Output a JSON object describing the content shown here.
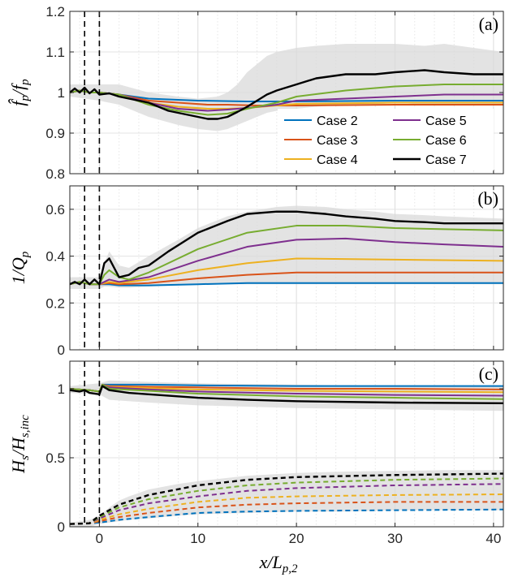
{
  "chart_data": [
    {
      "panel_label": "(a)",
      "type": "line",
      "ylabel": "f̂p/fp",
      "xlim": [
        -3,
        41
      ],
      "ylim": [
        0.8,
        1.2
      ],
      "yticks": [
        "0.8",
        "0.9",
        "1",
        "1.1",
        "1.2"
      ],
      "xticks": [],
      "vlines": [
        -1.5,
        0
      ],
      "band": {
        "x": [
          -3,
          0,
          2,
          5,
          8,
          10,
          12,
          13,
          14,
          15,
          16,
          17,
          18,
          20,
          22,
          25,
          28,
          30,
          33,
          35,
          38,
          41
        ],
        "upper": [
          1.02,
          1.02,
          1.02,
          1.0,
          0.99,
          0.985,
          0.99,
          1.0,
          1.02,
          1.05,
          1.07,
          1.09,
          1.1,
          1.11,
          1.115,
          1.12,
          1.12,
          1.12,
          1.115,
          1.12,
          1.11,
          1.1
        ],
        "lower": [
          0.99,
          0.98,
          0.97,
          0.94,
          0.92,
          0.91,
          0.905,
          0.91,
          0.92,
          0.93,
          0.94,
          0.95,
          0.955,
          0.96,
          0.965,
          0.97,
          0.97,
          0.975,
          0.97,
          0.97,
          0.97,
          0.97
        ]
      },
      "series": [
        {
          "name": "Case 2",
          "color": "#0072BD",
          "style": "solid",
          "x": [
            -3,
            -2,
            -1,
            0,
            2,
            5,
            10,
            15,
            20,
            30,
            41
          ],
          "y": [
            1.0,
            1.005,
            1.0,
            1.0,
            0.995,
            0.985,
            0.98,
            0.978,
            0.978,
            0.98,
            0.98
          ]
        },
        {
          "name": "Case 3",
          "color": "#D95319",
          "style": "solid",
          "x": [
            -3,
            -2,
            -1,
            0,
            2,
            5,
            8,
            11,
            13,
            16,
            20,
            30,
            41
          ],
          "y": [
            1.0,
            1.005,
            1.0,
            1.0,
            0.995,
            0.98,
            0.975,
            0.97,
            0.97,
            0.968,
            0.968,
            0.97,
            0.97
          ]
        },
        {
          "name": "Case 4",
          "color": "#EDB120",
          "style": "solid",
          "x": [
            -3,
            -2,
            -1,
            0,
            2,
            5,
            8,
            11,
            13,
            15,
            18,
            20,
            30,
            41
          ],
          "y": [
            1.0,
            1.005,
            1.0,
            1.0,
            0.995,
            0.975,
            0.965,
            0.96,
            0.96,
            0.962,
            0.968,
            0.972,
            0.975,
            0.975
          ]
        },
        {
          "name": "Case 5",
          "color": "#7E2F8E",
          "style": "solid",
          "x": [
            -3,
            -2,
            -1,
            0,
            2,
            5,
            8,
            11,
            13,
            15,
            18,
            20,
            25,
            30,
            35,
            41
          ],
          "y": [
            1.0,
            1.005,
            1.0,
            1.0,
            0.995,
            0.975,
            0.96,
            0.955,
            0.958,
            0.962,
            0.97,
            0.98,
            0.985,
            0.99,
            0.995,
            0.995
          ]
        },
        {
          "name": "Case 6",
          "color": "#77AC30",
          "style": "solid",
          "x": [
            -3,
            -2,
            -1,
            0,
            2,
            5,
            8,
            11,
            13,
            15,
            18,
            20,
            25,
            30,
            35,
            41
          ],
          "y": [
            1.0,
            1.005,
            1.0,
            1.0,
            0.995,
            0.97,
            0.955,
            0.945,
            0.948,
            0.96,
            0.975,
            0.99,
            1.005,
            1.015,
            1.02,
            1.02
          ]
        },
        {
          "name": "Case 7",
          "color": "#000000",
          "style": "solid",
          "x": [
            -3,
            -2.5,
            -2,
            -1.5,
            -1,
            -0.5,
            0,
            1,
            2,
            3,
            5,
            7,
            9,
            11,
            12,
            13,
            14,
            15,
            16,
            17,
            18,
            20,
            22,
            25,
            28,
            30,
            33,
            35,
            38,
            41
          ],
          "y": [
            1.0,
            1.01,
            1.0,
            1.012,
            0.998,
            1.008,
            0.995,
            0.998,
            0.99,
            0.985,
            0.975,
            0.955,
            0.945,
            0.935,
            0.935,
            0.94,
            0.952,
            0.965,
            0.98,
            0.995,
            1.005,
            1.02,
            1.035,
            1.045,
            1.045,
            1.05,
            1.055,
            1.05,
            1.045,
            1.045
          ]
        }
      ],
      "legend": {
        "placement": "bottom-right",
        "columns": 2
      }
    },
    {
      "panel_label": "(b)",
      "type": "line",
      "ylabel": "1/Qp",
      "xlim": [
        -3,
        41
      ],
      "ylim": [
        0,
        0.7
      ],
      "yticks": [
        "0",
        "0.2",
        "0.4",
        "0.6"
      ],
      "xticks": [],
      "vlines": [
        -1.5,
        0
      ],
      "band": {
        "x": [
          -3,
          0,
          0.5,
          1,
          2,
          3,
          5,
          8,
          10,
          13,
          15,
          18,
          20,
          23,
          25,
          28,
          30,
          33,
          35,
          38,
          41
        ],
        "upper": [
          0.31,
          0.31,
          0.37,
          0.42,
          0.36,
          0.35,
          0.4,
          0.47,
          0.52,
          0.57,
          0.59,
          0.61,
          0.615,
          0.61,
          0.6,
          0.59,
          0.58,
          0.575,
          0.57,
          0.565,
          0.56
        ],
        "lower": [
          0.26,
          0.26,
          0.27,
          0.27,
          0.265,
          0.265,
          0.27,
          0.275,
          0.28,
          0.28,
          0.28,
          0.28,
          0.28,
          0.28,
          0.28,
          0.28,
          0.28,
          0.28,
          0.28,
          0.28,
          0.28
        ]
      },
      "series": [
        {
          "name": "Case 2",
          "color": "#0072BD",
          "style": "solid",
          "x": [
            -3,
            -2,
            -1,
            0,
            1,
            2,
            5,
            10,
            15,
            20,
            30,
            41
          ],
          "y": [
            0.28,
            0.29,
            0.28,
            0.28,
            0.28,
            0.275,
            0.275,
            0.28,
            0.285,
            0.285,
            0.285,
            0.285
          ]
        },
        {
          "name": "Case 3",
          "color": "#D95319",
          "style": "solid",
          "x": [
            -3,
            -2,
            -1,
            0,
            1,
            2,
            5,
            10,
            15,
            20,
            30,
            41
          ],
          "y": [
            0.28,
            0.29,
            0.28,
            0.28,
            0.285,
            0.28,
            0.285,
            0.305,
            0.32,
            0.33,
            0.33,
            0.33
          ]
        },
        {
          "name": "Case 4",
          "color": "#EDB120",
          "style": "solid",
          "x": [
            -3,
            -2,
            -1,
            0,
            1,
            2,
            5,
            10,
            15,
            20,
            30,
            41
          ],
          "y": [
            0.28,
            0.29,
            0.28,
            0.28,
            0.29,
            0.285,
            0.3,
            0.34,
            0.37,
            0.39,
            0.385,
            0.38
          ]
        },
        {
          "name": "Case 5",
          "color": "#7E2F8E",
          "style": "solid",
          "x": [
            -3,
            -2,
            -1,
            0,
            1,
            2,
            5,
            10,
            15,
            20,
            25,
            30,
            35,
            41
          ],
          "y": [
            0.28,
            0.29,
            0.28,
            0.28,
            0.3,
            0.29,
            0.31,
            0.38,
            0.44,
            0.47,
            0.475,
            0.46,
            0.45,
            0.44
          ]
        },
        {
          "name": "Case 6",
          "color": "#77AC30",
          "style": "solid",
          "x": [
            -3,
            -2,
            -1,
            0,
            0.5,
            1,
            2,
            3,
            5,
            10,
            15,
            20,
            25,
            30,
            35,
            41
          ],
          "y": [
            0.28,
            0.29,
            0.28,
            0.28,
            0.32,
            0.34,
            0.31,
            0.3,
            0.33,
            0.43,
            0.5,
            0.53,
            0.53,
            0.52,
            0.515,
            0.51
          ]
        },
        {
          "name": "Case 7",
          "color": "#000000",
          "style": "solid",
          "x": [
            -3,
            -2.5,
            -2,
            -1.5,
            -1,
            -0.5,
            0,
            0.5,
            1,
            1.5,
            2,
            3,
            4,
            5,
            7,
            10,
            13,
            15,
            18,
            20,
            23,
            25,
            28,
            30,
            33,
            35,
            38,
            41
          ],
          "y": [
            0.28,
            0.29,
            0.28,
            0.3,
            0.28,
            0.3,
            0.28,
            0.37,
            0.39,
            0.35,
            0.31,
            0.32,
            0.35,
            0.36,
            0.42,
            0.5,
            0.55,
            0.58,
            0.59,
            0.59,
            0.58,
            0.57,
            0.56,
            0.55,
            0.545,
            0.54,
            0.54,
            0.54
          ]
        }
      ]
    },
    {
      "panel_label": "(c)",
      "type": "line",
      "ylabel": "Hs/Hs,inc",
      "xlabel": "x/Lp,2",
      "xlim": [
        -3,
        41
      ],
      "ylim": [
        0,
        1.2
      ],
      "yticks": [
        "0",
        "0.5",
        "1"
      ],
      "xticks": [
        "0",
        "10",
        "20",
        "30",
        "40"
      ],
      "vlines": [
        -1.5,
        0
      ],
      "band": {
        "x": [
          -3,
          -1,
          0,
          1,
          2,
          3,
          5,
          8,
          10,
          15,
          20,
          25,
          30,
          35,
          41
        ],
        "upper": [
          0.03,
          0.05,
          0.08,
          0.14,
          0.19,
          0.22,
          0.27,
          0.31,
          0.33,
          0.37,
          0.39,
          0.4,
          0.405,
          0.41,
          0.41
        ],
        "lower": [
          0.0,
          0.0,
          0.02,
          0.03,
          0.04,
          0.05,
          0.06,
          0.08,
          0.09,
          0.1,
          0.11,
          0.11,
          0.12,
          0.12,
          0.12
        ]
      },
      "band2": {
        "x": [
          -3,
          0,
          1,
          5,
          10,
          20,
          30,
          41
        ],
        "upper": [
          1.02,
          1.04,
          1.06,
          1.05,
          1.04,
          1.03,
          1.02,
          1.02
        ],
        "lower": [
          0.97,
          0.96,
          0.92,
          0.9,
          0.88,
          0.86,
          0.85,
          0.84
        ]
      },
      "series": [
        {
          "name": "Case 2",
          "color": "#0072BD",
          "style": "solid",
          "x": [
            -3,
            -1,
            0,
            0.3,
            1,
            5,
            10,
            20,
            30,
            41
          ],
          "y": [
            1.0,
            0.99,
            0.98,
            1.03,
            1.03,
            1.03,
            1.025,
            1.02,
            1.02,
            1.02
          ]
        },
        {
          "name": "Case 3",
          "color": "#D95319",
          "style": "solid",
          "x": [
            -3,
            -1,
            0,
            0.3,
            1,
            5,
            10,
            20,
            30,
            41
          ],
          "y": [
            1.0,
            0.99,
            0.98,
            1.03,
            1.02,
            1.015,
            1.01,
            1.0,
            1.0,
            0.995
          ]
        },
        {
          "name": "Case 4",
          "color": "#EDB120",
          "style": "solid",
          "x": [
            -3,
            -1,
            0,
            0.3,
            1,
            5,
            10,
            20,
            30,
            41
          ],
          "y": [
            1.0,
            0.99,
            0.98,
            1.03,
            1.015,
            1.005,
            0.995,
            0.985,
            0.98,
            0.975
          ]
        },
        {
          "name": "Case 5",
          "color": "#7E2F8E",
          "style": "solid",
          "x": [
            -3,
            -1,
            0,
            0.3,
            1,
            5,
            10,
            20,
            30,
            41
          ],
          "y": [
            1.0,
            0.99,
            0.98,
            1.03,
            1.01,
            0.995,
            0.98,
            0.965,
            0.955,
            0.95
          ]
        },
        {
          "name": "Case 6",
          "color": "#77AC30",
          "style": "solid",
          "x": [
            -3,
            -1,
            0,
            0.3,
            1,
            5,
            10,
            20,
            30,
            41
          ],
          "y": [
            1.0,
            0.99,
            0.98,
            1.03,
            1.0,
            0.985,
            0.965,
            0.945,
            0.935,
            0.925
          ]
        },
        {
          "name": "Case 7",
          "color": "#000000",
          "style": "solid",
          "x": [
            -3,
            -2,
            -1.5,
            -1,
            0,
            0.3,
            1,
            3,
            5,
            10,
            15,
            20,
            30,
            41
          ],
          "y": [
            0.99,
            0.98,
            0.99,
            0.97,
            0.96,
            1.02,
            0.99,
            0.97,
            0.96,
            0.935,
            0.92,
            0.91,
            0.9,
            0.895
          ]
        },
        {
          "name": "Case 2",
          "color": "#0072BD",
          "style": "dashed",
          "x": [
            -3,
            -1,
            0,
            2,
            5,
            10,
            15,
            20,
            30,
            41
          ],
          "y": [
            0.02,
            0.025,
            0.03,
            0.05,
            0.07,
            0.1,
            0.11,
            0.115,
            0.12,
            0.125
          ]
        },
        {
          "name": "Case 3",
          "color": "#D95319",
          "style": "dashed",
          "x": [
            -3,
            -1,
            0,
            2,
            5,
            10,
            15,
            20,
            30,
            41
          ],
          "y": [
            0.02,
            0.025,
            0.04,
            0.07,
            0.1,
            0.14,
            0.16,
            0.17,
            0.18,
            0.18
          ]
        },
        {
          "name": "Case 4",
          "color": "#EDB120",
          "style": "dashed",
          "x": [
            -3,
            -1,
            0,
            2,
            5,
            10,
            15,
            20,
            30,
            41
          ],
          "y": [
            0.02,
            0.025,
            0.05,
            0.09,
            0.13,
            0.18,
            0.21,
            0.22,
            0.23,
            0.235
          ]
        },
        {
          "name": "Case 5",
          "color": "#7E2F8E",
          "style": "dashed",
          "x": [
            -3,
            -1,
            0,
            2,
            5,
            10,
            15,
            20,
            30,
            41
          ],
          "y": [
            0.02,
            0.025,
            0.06,
            0.12,
            0.17,
            0.22,
            0.26,
            0.28,
            0.3,
            0.31
          ]
        },
        {
          "name": "Case 6",
          "color": "#77AC30",
          "style": "dashed",
          "x": [
            -3,
            -1,
            0,
            2,
            5,
            10,
            15,
            20,
            30,
            41
          ],
          "y": [
            0.02,
            0.025,
            0.07,
            0.14,
            0.2,
            0.26,
            0.3,
            0.32,
            0.34,
            0.35
          ]
        },
        {
          "name": "Case 7",
          "color": "#000000",
          "style": "dashed",
          "x": [
            -3,
            -1,
            0,
            2,
            5,
            10,
            15,
            20,
            30,
            41
          ],
          "y": [
            0.02,
            0.025,
            0.08,
            0.16,
            0.23,
            0.3,
            0.34,
            0.36,
            0.375,
            0.385
          ]
        }
      ]
    }
  ]
}
